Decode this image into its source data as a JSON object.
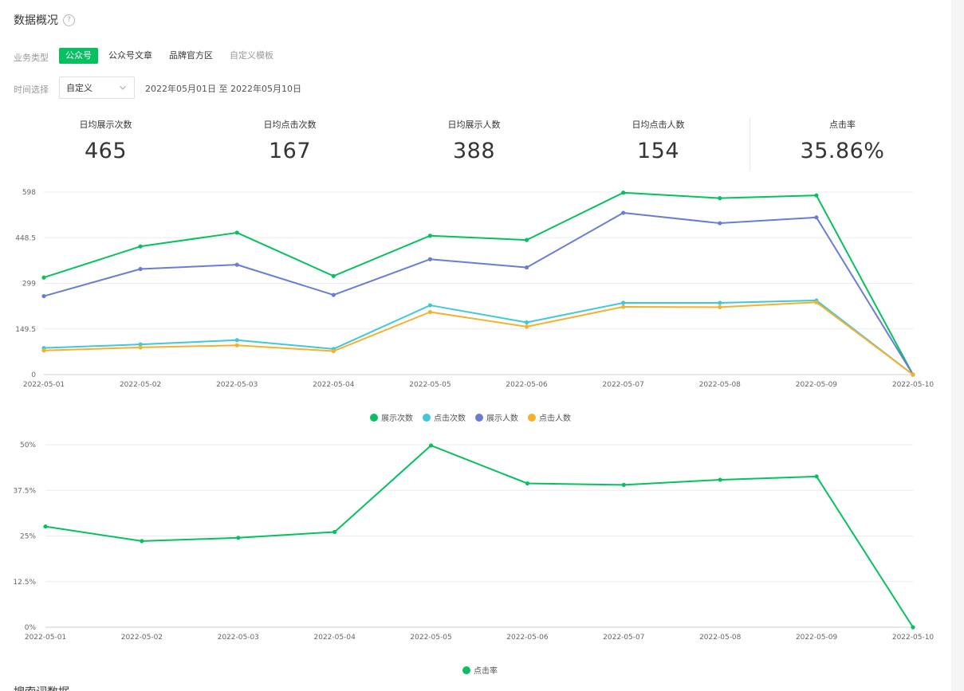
{
  "header": {
    "title": "数据概况",
    "help_icon": "question-circle-icon"
  },
  "filters": {
    "type_label": "业务类型",
    "type_tabs": [
      {
        "label": "公众号",
        "state": "active"
      },
      {
        "label": "公众号文章",
        "state": "normal"
      },
      {
        "label": "品牌官方区",
        "state": "normal"
      },
      {
        "label": "自定义模板",
        "state": "disabled"
      }
    ],
    "time_label": "时间选择",
    "time_select_value": "自定义",
    "date_range": "2022年05月01日 至 2022年05月10日"
  },
  "metrics": [
    {
      "label": "日均展示次数",
      "value": "465"
    },
    {
      "label": "日均点击次数",
      "value": "167"
    },
    {
      "label": "日均展示人数",
      "value": "388"
    },
    {
      "label": "日均点击人数",
      "value": "154"
    },
    {
      "label": "点击率",
      "value": "35.86%"
    }
  ],
  "chart_data": [
    {
      "type": "line",
      "x": [
        "2022-05-01",
        "2022-05-02",
        "2022-05-03",
        "2022-05-04",
        "2022-05-05",
        "2022-05-06",
        "2022-05-07",
        "2022-05-08",
        "2022-05-09",
        "2022-05-10"
      ],
      "yticks": [
        "0",
        "149.5",
        "299",
        "448.5",
        "598"
      ],
      "ylim": [
        0,
        598
      ],
      "grid": true,
      "legend_position": "bottom-center",
      "series": [
        {
          "name": "展示次数",
          "color": "#07c160",
          "values": [
            318,
            420,
            465,
            323,
            455,
            441,
            596,
            578,
            587,
            0
          ]
        },
        {
          "name": "点击次数",
          "color": "#40c8da",
          "values": [
            87,
            99,
            113,
            84,
            227,
            171,
            235,
            235,
            243,
            0
          ]
        },
        {
          "name": "展示人数",
          "color": "#6b7dd2",
          "values": [
            257,
            346,
            360,
            261,
            378,
            351,
            530,
            496,
            515,
            0
          ]
        },
        {
          "name": "点击人数",
          "color": "#f5b12d",
          "values": [
            79,
            89,
            96,
            77,
            205,
            157,
            222,
            221,
            237,
            0
          ]
        }
      ]
    },
    {
      "type": "line",
      "x": [
        "2022-05-01",
        "2022-05-02",
        "2022-05-03",
        "2022-05-04",
        "2022-05-05",
        "2022-05-06",
        "2022-05-07",
        "2022-05-08",
        "2022-05-09",
        "2022-05-10"
      ],
      "yticks": [
        "0%",
        "12.5%",
        "25%",
        "37.5%",
        "50%"
      ],
      "ylim": [
        0,
        50
      ],
      "unit": "%",
      "grid": true,
      "legend_position": "bottom-center",
      "series": [
        {
          "name": "点击率",
          "color": "#07c160",
          "values": [
            27.6,
            23.6,
            24.5,
            26.1,
            49.8,
            39.4,
            39.0,
            40.4,
            41.3,
            0
          ]
        }
      ]
    }
  ],
  "footer": {
    "next_section_title": "搜索词数据"
  }
}
